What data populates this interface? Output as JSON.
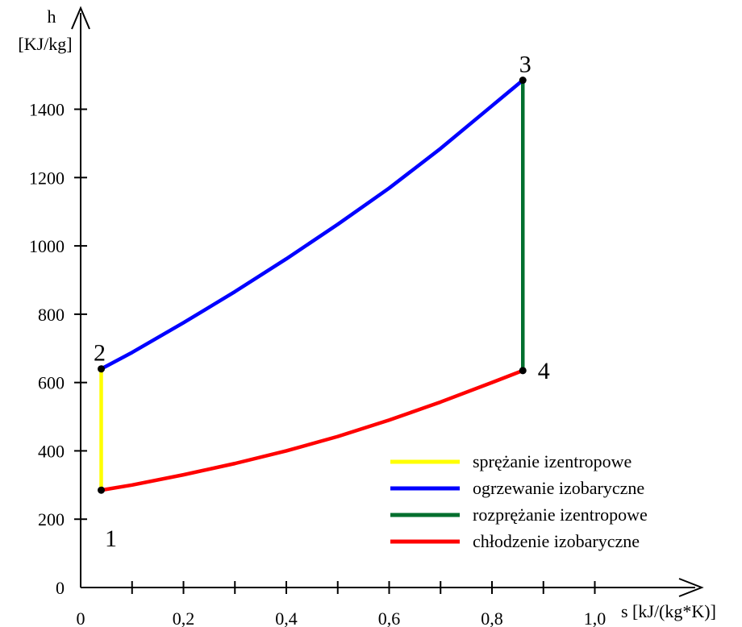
{
  "chart_data": {
    "type": "line",
    "title": "",
    "xlabel": "s [kJ/(kg*K)]",
    "ylabel_line1": "h",
    "ylabel_line2": "[KJ/kg]",
    "xlim": [
      0,
      1.2
    ],
    "ylim": [
      0,
      1600
    ],
    "x_ticks": [
      0,
      0.1,
      0.2,
      0.3,
      0.4,
      0.5,
      0.6,
      0.7,
      0.8,
      0.9,
      1.0
    ],
    "x_tick_labels": [
      {
        "value": 0,
        "label": "0"
      },
      {
        "value": 0.2,
        "label": "0,2"
      },
      {
        "value": 0.4,
        "label": "0,4"
      },
      {
        "value": 0.6,
        "label": "0,6"
      },
      {
        "value": 0.8,
        "label": "0,8"
      },
      {
        "value": 1.0,
        "label": "1,0"
      }
    ],
    "y_ticks": [
      0,
      200,
      400,
      600,
      800,
      1000,
      1200,
      1400
    ],
    "y_tick_labels": [
      "0",
      "200",
      "400",
      "600",
      "800",
      "1000",
      "1200",
      "1400"
    ],
    "grid": false,
    "legend_position": "bottom-right",
    "points": [
      {
        "label": "1",
        "x": 0.04,
        "y": 285
      },
      {
        "label": "2",
        "x": 0.04,
        "y": 640
      },
      {
        "label": "3",
        "x": 0.86,
        "y": 1485
      },
      {
        "label": "4",
        "x": 0.86,
        "y": 635
      }
    ],
    "series": [
      {
        "name": "sprężanie izentropowe",
        "color": "#ffff00",
        "x": [
          0.04,
          0.04
        ],
        "y": [
          285,
          640
        ]
      },
      {
        "name": "ogrzewanie izobaryczne",
        "color": "#0000ff",
        "x": [
          0.04,
          0.1,
          0.2,
          0.3,
          0.4,
          0.5,
          0.6,
          0.7,
          0.8,
          0.86
        ],
        "y": [
          640,
          688,
          775,
          866,
          962,
          1063,
          1169,
          1285,
          1410,
          1485
        ]
      },
      {
        "name": "rozprężanie izentropowe",
        "color": "#006f2e",
        "x": [
          0.86,
          0.86
        ],
        "y": [
          1485,
          635
        ]
      },
      {
        "name": "chłodzenie izobaryczne",
        "color": "#ff0000",
        "x": [
          0.04,
          0.1,
          0.2,
          0.3,
          0.4,
          0.5,
          0.6,
          0.7,
          0.8,
          0.86
        ],
        "y": [
          285,
          300,
          330,
          363,
          400,
          442,
          490,
          543,
          600,
          635
        ]
      }
    ]
  }
}
